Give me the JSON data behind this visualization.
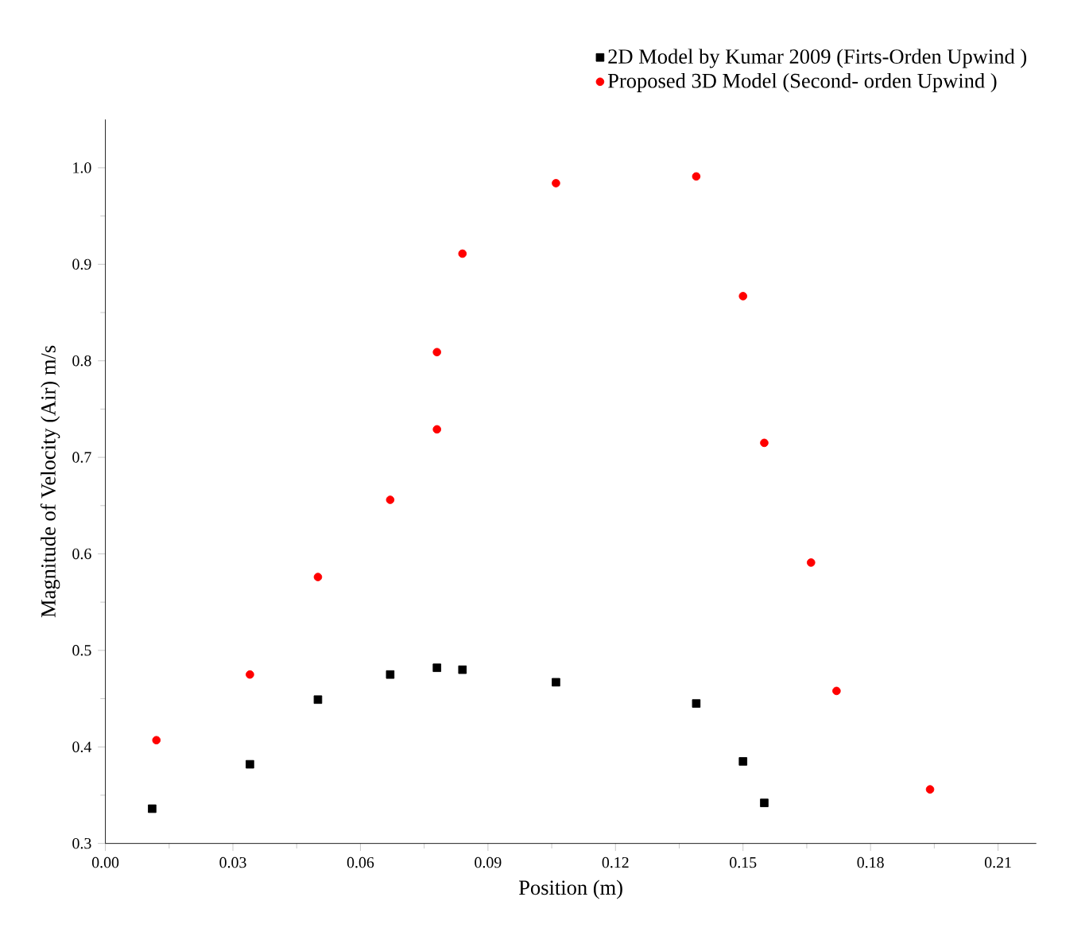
{
  "chart_data": {
    "type": "scatter",
    "xlabel": "Position (m)",
    "ylabel": "Magnitude of Velocity (Air) m/s",
    "xlim": [
      0,
      0.219
    ],
    "ylim": [
      0.3,
      1.05
    ],
    "xticks": [
      {
        "value": 0,
        "label": "0.00"
      },
      {
        "value": 0.03,
        "label": "0.03"
      },
      {
        "value": 0.06,
        "label": "0.06"
      },
      {
        "value": 0.09,
        "label": "0.09"
      },
      {
        "value": 0.12,
        "label": "0.12"
      },
      {
        "value": 0.15,
        "label": "0.15"
      },
      {
        "value": 0.18,
        "label": "0.18"
      },
      {
        "value": 0.21,
        "label": "0.21"
      }
    ],
    "yticks": [
      {
        "value": 0.3,
        "label": "0.3"
      },
      {
        "value": 0.4,
        "label": "0.4"
      },
      {
        "value": 0.5,
        "label": "0.5"
      },
      {
        "value": 0.6,
        "label": "0.6"
      },
      {
        "value": 0.7,
        "label": "0.7"
      },
      {
        "value": 0.8,
        "label": "0.8"
      },
      {
        "value": 0.9,
        "label": "0.9"
      },
      {
        "value": 1.0,
        "label": "1.0"
      }
    ],
    "legend": "top",
    "grid": false,
    "series": [
      {
        "name": "2D Model by Kumar 2009 (Firts-Orden Upwind )",
        "color": "#000000",
        "marker": "square",
        "x": [
          0.011,
          0.034,
          0.05,
          0.067,
          0.078,
          0.084,
          0.106,
          0.139,
          0.15,
          0.155
        ],
        "values": [
          0.336,
          0.382,
          0.449,
          0.475,
          0.482,
          0.48,
          0.467,
          0.445,
          0.385,
          0.342
        ]
      },
      {
        "name": "Proposed 3D Model (Second- orden Upwind )",
        "color": "#ff0000",
        "marker": "circle",
        "x": [
          0.012,
          0.034,
          0.05,
          0.067,
          0.078,
          0.078,
          0.084,
          0.106,
          0.139,
          0.15,
          0.155,
          0.166,
          0.172,
          0.194
        ],
        "values": [
          0.407,
          0.475,
          0.576,
          0.656,
          0.729,
          0.809,
          0.911,
          0.984,
          0.991,
          0.867,
          0.715,
          0.591,
          0.458,
          0.356
        ]
      }
    ]
  }
}
